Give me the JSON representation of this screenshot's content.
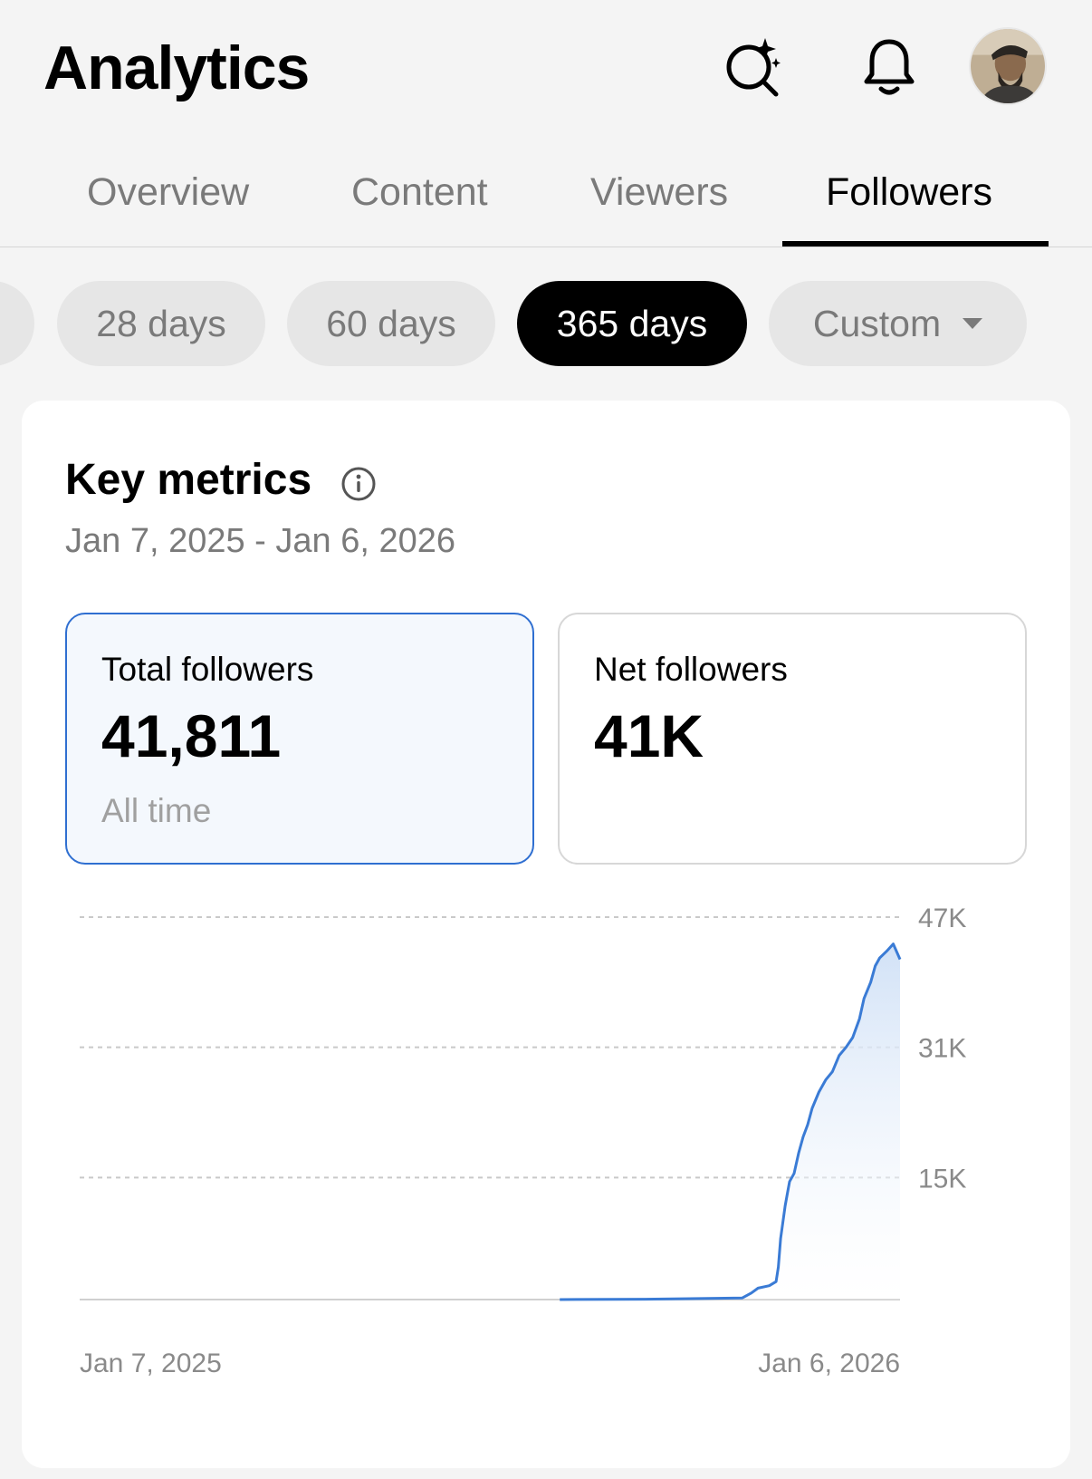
{
  "header": {
    "title": "Analytics",
    "icons": [
      "ai-search-icon",
      "bell-icon"
    ],
    "avatar": "user-avatar"
  },
  "tabs": [
    {
      "label": "Overview",
      "active": false
    },
    {
      "label": "Content",
      "active": false
    },
    {
      "label": "Viewers",
      "active": false
    },
    {
      "label": "Followers",
      "active": true
    }
  ],
  "ranges": [
    {
      "label": "28 days",
      "active": false
    },
    {
      "label": "60 days",
      "active": false
    },
    {
      "label": "365 days",
      "active": true
    },
    {
      "label": "Custom",
      "active": false,
      "has_dropdown": true
    }
  ],
  "key_metrics": {
    "title": "Key metrics",
    "date_range": "Jan 7, 2025 - Jan 6, 2026",
    "cards": [
      {
        "label": "Total followers",
        "value": "41,811",
        "sub": "All time",
        "selected": true
      },
      {
        "label": "Net followers",
        "value": "41K",
        "sub": "",
        "selected": false
      }
    ]
  },
  "colors": {
    "accent": "#2f6fd1",
    "line": "#3a7bd5",
    "fill_top": "#cfe0f6",
    "selected_bg": "#f4f8fd"
  },
  "chart_data": {
    "type": "area",
    "title": "",
    "xlabel": "",
    "ylabel": "",
    "ylim": [
      0,
      47000
    ],
    "y_ticks": [
      "47K",
      "31K",
      "15K"
    ],
    "y_tick_values": [
      47000,
      31000,
      15000
    ],
    "x_tick_labels": [
      "Jan 7, 2025",
      "Jan 6, 2026"
    ],
    "grid": true,
    "x": [
      "2025-08-08",
      "2025-09-15",
      "2025-10-28",
      "2025-11-01",
      "2025-11-04",
      "2025-11-09",
      "2025-11-12",
      "2025-11-13",
      "2025-11-14",
      "2025-11-15",
      "2025-11-16",
      "2025-11-17",
      "2025-11-18",
      "2025-11-20",
      "2025-11-22",
      "2025-11-24",
      "2025-11-26",
      "2025-11-28",
      "2025-12-01",
      "2025-12-04",
      "2025-12-07",
      "2025-12-10",
      "2025-12-13",
      "2025-12-16",
      "2025-12-19",
      "2025-12-21",
      "2025-12-24",
      "2025-12-26",
      "2025-12-28",
      "2025-12-31",
      "2026-01-03",
      "2026-01-06"
    ],
    "values": [
      0,
      40,
      200,
      800,
      1400,
      1700,
      2200,
      4000,
      7500,
      9500,
      11500,
      13000,
      14500,
      15500,
      18000,
      20000,
      21500,
      23500,
      25500,
      27000,
      28000,
      30000,
      31000,
      32200,
      34500,
      37000,
      39000,
      41000,
      42000,
      42800,
      43700,
      41811
    ]
  }
}
